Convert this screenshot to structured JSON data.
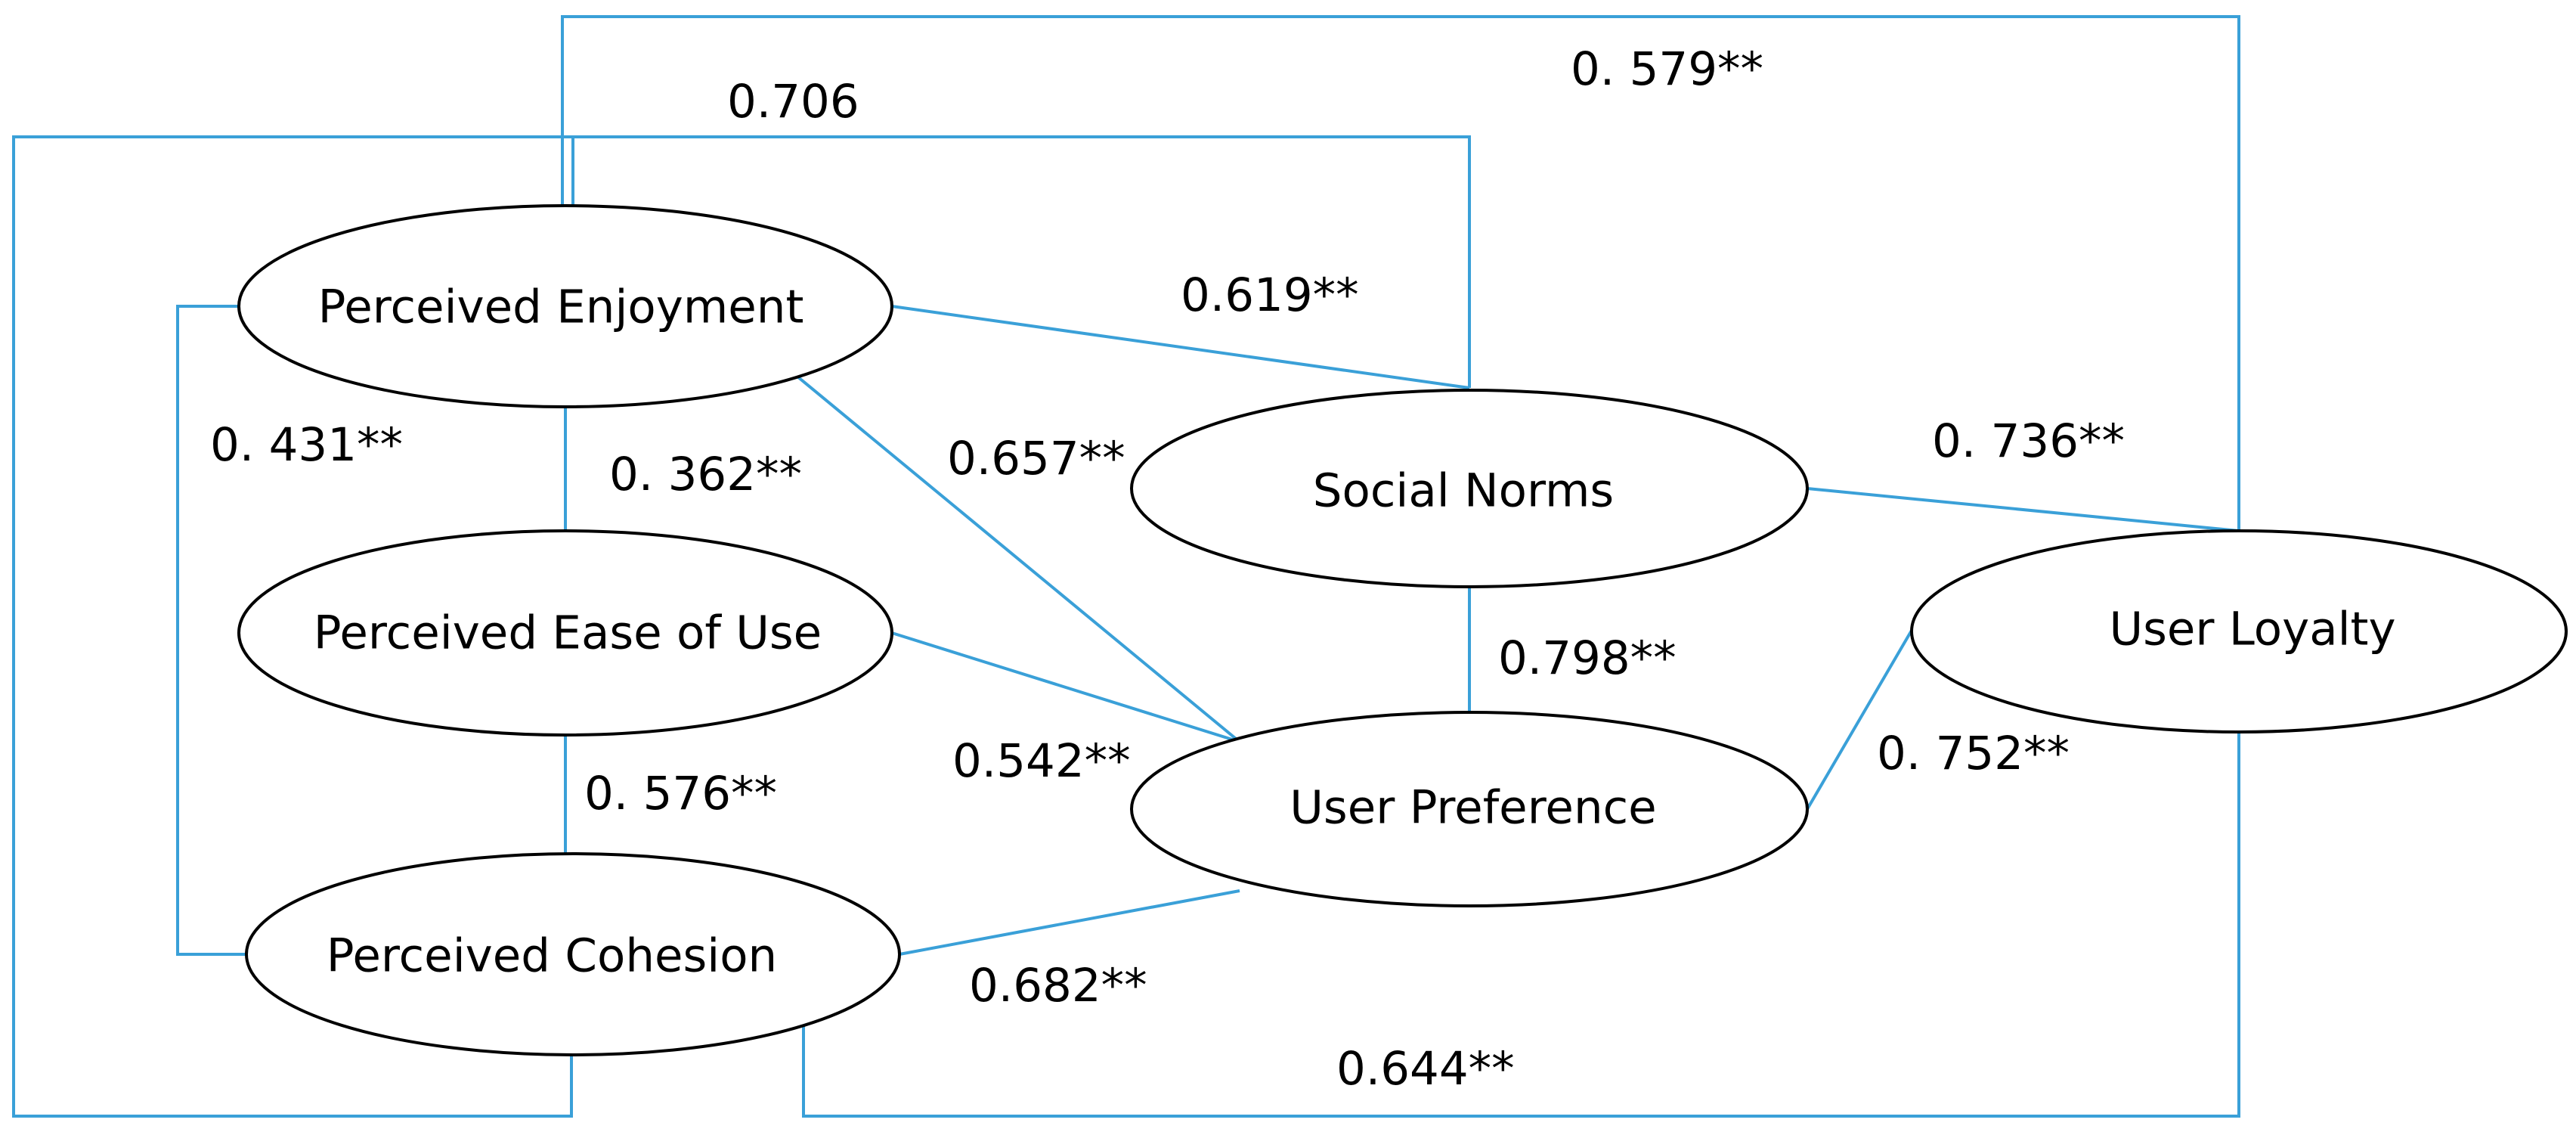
{
  "nodes": {
    "enjoyment": "Perceived Enjoyment",
    "social_norms": "Social Norms",
    "ease_of_use": "Perceived Ease of Use",
    "user_loyalty": "User Loyalty",
    "user_preference": "User Preference",
    "cohesion": "Perceived Cohesion"
  },
  "edges": {
    "enjoyment_social_norms_outer": "0.706",
    "enjoyment_user_loyalty_outer": "0. 579**",
    "enjoyment_social_norms": "0.619**",
    "enjoyment_cohesion": "0. 431**",
    "enjoyment_ease_of_use": "0. 362**",
    "enjoyment_user_preference": "0.657**",
    "social_norms_user_loyalty": "0. 736**",
    "social_norms_user_preference": "0.798**",
    "ease_of_use_user_preference": "0.542**",
    "user_preference_user_loyalty": "0. 752**",
    "ease_of_use_cohesion": "0. 576**",
    "cohesion_user_preference": "0.682**",
    "cohesion_user_loyalty": "0.644**"
  },
  "colors": {
    "connector": "#3aa0d8",
    "node_border": "#000000"
  }
}
